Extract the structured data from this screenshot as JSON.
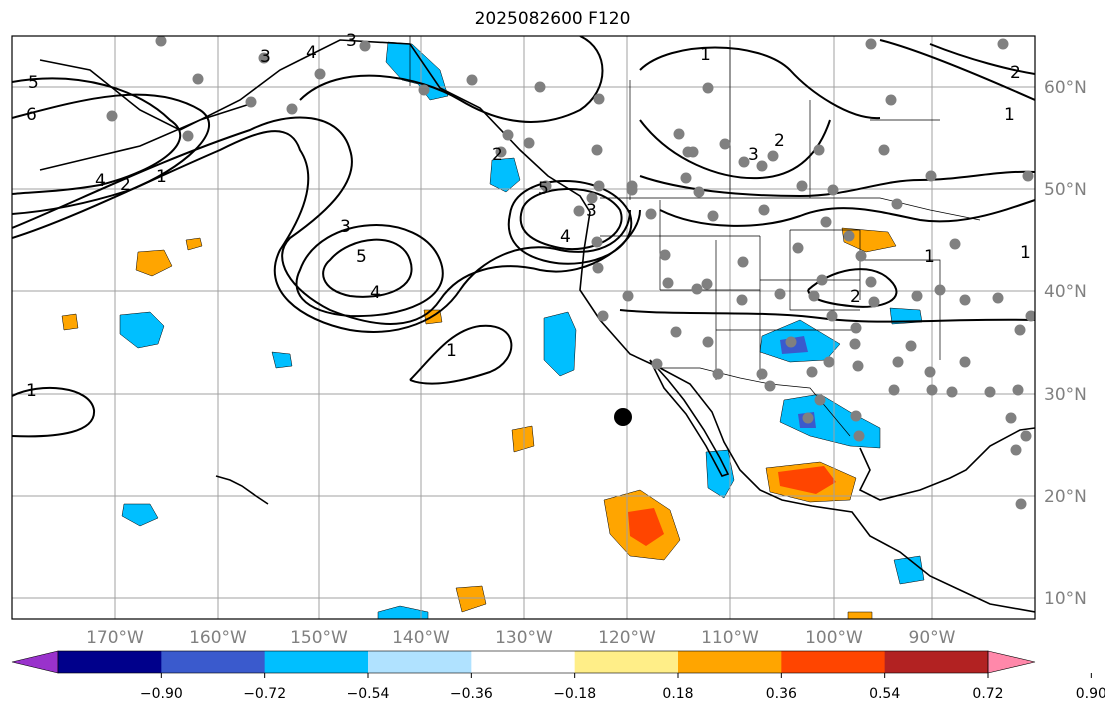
{
  "title": "2025082600 F120",
  "lon_ticks": [
    "170°W",
    "160°W",
    "150°W",
    "140°W",
    "130°W",
    "120°W",
    "110°W",
    "100°W",
    "90°W"
  ],
  "lat_ticks": [
    "60°N",
    "50°N",
    "40°N",
    "30°N",
    "20°N",
    "10°N"
  ],
  "colorbar": {
    "labels": [
      "−0.90",
      "−0.72",
      "−0.54",
      "−0.36",
      "−0.18",
      "0.18",
      "0.36",
      "0.54",
      "0.72",
      "0.90"
    ],
    "colors": [
      "#9932cc",
      "#00008b",
      "#3a5acd",
      "#00bfff",
      "#b0e2ff",
      "#ffffff",
      "#ffee88",
      "#ffa500",
      "#ff4500",
      "#b22222",
      "#ff88aa"
    ]
  },
  "contour_labels": [
    "1",
    "2",
    "3",
    "4",
    "5",
    "6",
    "1",
    "2",
    "3",
    "4",
    "5",
    "4",
    "3",
    "1",
    "5",
    "4",
    "3",
    "2",
    "1",
    "2",
    "1",
    "3",
    "2",
    "1",
    "1"
  ],
  "colors": {
    "contour": "#000000",
    "coast": "#000000",
    "grid": "#a0a0a0",
    "station": "#808080",
    "marker": "#000000"
  }
}
